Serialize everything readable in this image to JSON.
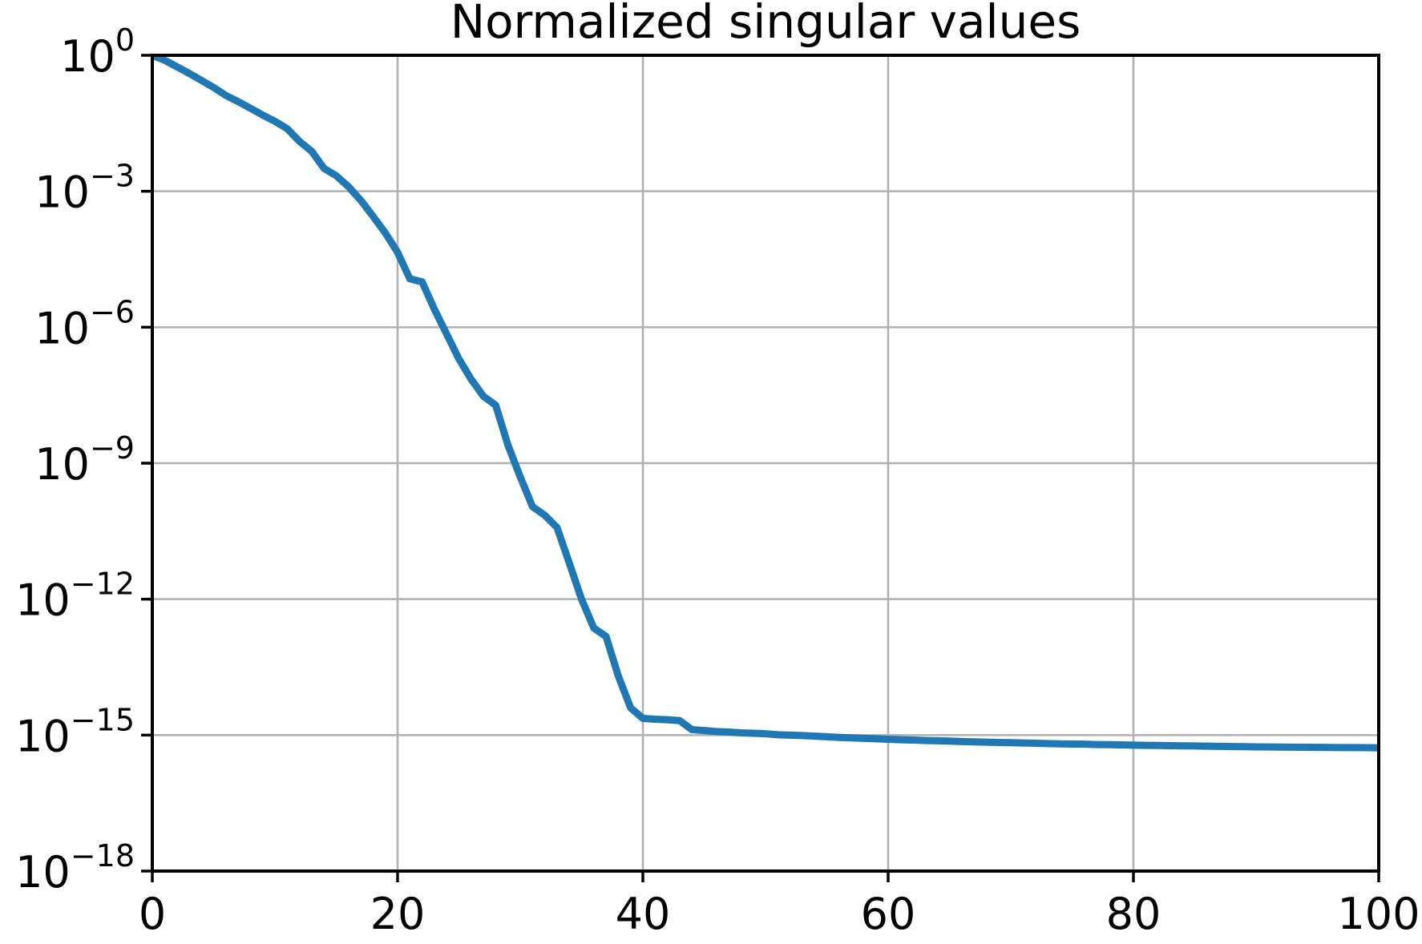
{
  "page": {
    "background": "#ffffff"
  },
  "chart_data": {
    "type": "line",
    "title": "Normalized singular values",
    "xlabel": "",
    "ylabel": "",
    "xscale": "linear",
    "yscale": "log",
    "xlim": [
      0,
      100
    ],
    "ylim": [
      1e-18,
      1
    ],
    "grid": true,
    "legend_position": "none",
    "x_ticks": [
      0,
      20,
      40,
      60,
      80,
      100
    ],
    "y_tick_exponents": [
      0,
      -3,
      -6,
      -9,
      -12,
      -15,
      -18
    ],
    "styles": {
      "line_color": "#1f77b4",
      "line_width": 9,
      "grid_color": "#b0b0b0",
      "spine_color": "#000000",
      "tick_color": "#000000",
      "text_color": "#000000"
    },
    "series": [
      {
        "name": "normalized singular values",
        "color": "#1f77b4",
        "x": [
          0,
          1,
          2,
          3,
          4,
          5,
          6,
          7,
          8,
          9,
          10,
          11,
          12,
          13,
          14,
          15,
          16,
          17,
          18,
          19,
          20,
          21,
          22,
          23,
          24,
          25,
          26,
          27,
          28,
          29,
          30,
          31,
          32,
          33,
          34,
          35,
          36,
          37,
          38,
          39,
          40,
          41,
          42,
          43,
          44,
          45,
          46,
          47,
          48,
          49,
          50,
          51,
          52,
          53,
          54,
          55,
          56,
          57,
          58,
          59,
          60,
          61,
          62,
          63,
          64,
          65,
          66,
          67,
          68,
          69,
          70,
          71,
          72,
          73,
          74,
          75,
          76,
          77,
          78,
          79,
          80,
          81,
          82,
          83,
          84,
          85,
          86,
          87,
          88,
          89,
          90,
          91,
          92,
          93,
          94,
          95,
          96,
          97,
          98,
          99,
          100
        ],
        "y": [
          1.0,
          0.78,
          0.56,
          0.4,
          0.28,
          0.195,
          0.13,
          0.095,
          0.068,
          0.048,
          0.035,
          0.024,
          0.0126,
          0.0076,
          0.0032,
          0.0022,
          0.00126,
          0.00063,
          0.00028,
          0.00012,
          4.5e-05,
          1.17e-05,
          1e-05,
          2.5e-06,
          7.1e-07,
          2e-07,
          7.1e-08,
          3e-08,
          1.9e-08,
          2.5e-09,
          5e-10,
          1.1e-10,
          7.1e-11,
          3.8e-11,
          6.3e-12,
          1e-12,
          2.3e-13,
          1.5e-13,
          2e-14,
          4e-15,
          2.34e-15,
          2.24e-15,
          2.19e-15,
          2.09e-15,
          1.32e-15,
          1.26e-15,
          1.2e-15,
          1.17e-15,
          1.12e-15,
          1.1e-15,
          1.07e-15,
          1.02e-15,
          1e-15,
          9.8e-16,
          9.5e-16,
          9.2e-16,
          8.9e-16,
          8.7e-16,
          8.5e-16,
          8.3e-16,
          8.1e-16,
          7.9e-16,
          7.8e-16,
          7.6e-16,
          7.5e-16,
          7.4e-16,
          7.2e-16,
          7.1e-16,
          7e-16,
          6.9e-16,
          6.8e-16,
          6.7e-16,
          6.6e-16,
          6.5e-16,
          6.4e-16,
          6.35e-16,
          6.3e-16,
          6.2e-16,
          6.15e-16,
          6.1e-16,
          6e-16,
          5.95e-16,
          5.9e-16,
          5.85e-16,
          5.8e-16,
          5.75e-16,
          5.7e-16,
          5.65e-16,
          5.6e-16,
          5.55e-16,
          5.5e-16,
          5.48e-16,
          5.45e-16,
          5.42e-16,
          5.4e-16,
          5.37e-16,
          5.35e-16,
          5.32e-16,
          5.3e-16,
          5.28e-16,
          5.25e-16
        ]
      }
    ]
  }
}
